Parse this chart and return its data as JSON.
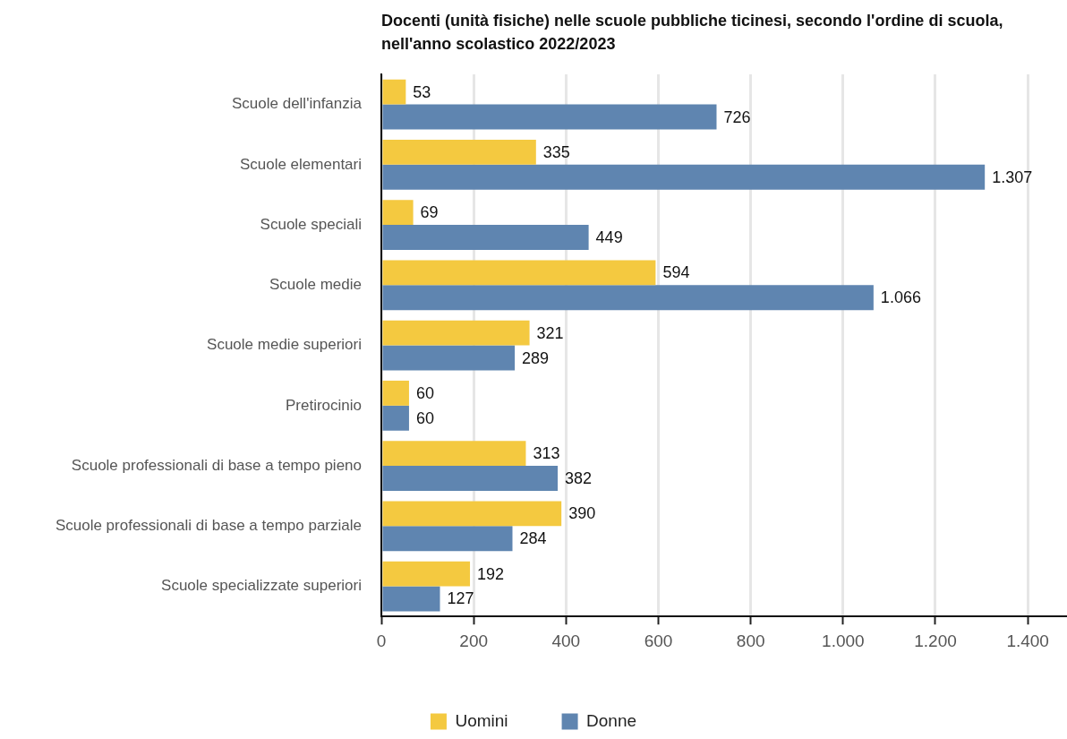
{
  "chart_data": {
    "type": "bar",
    "orientation": "horizontal",
    "title": "Docenti (unità fisiche) nelle scuole pubbliche ticinesi, secondo l'ordine di scuola, nell'anno scolastico 2022/2023",
    "categories": [
      "Scuole dell'infanzia",
      "Scuole elementari",
      "Scuole speciali",
      "Scuole medie",
      "Scuole medie superiori",
      "Pretirocinio",
      "Scuole professionali di base a tempo pieno",
      "Scuole professionali di base a tempo parziale",
      "Scuole specializzate superiori"
    ],
    "series": [
      {
        "name": "Uomini",
        "color": "#f4c940",
        "values": [
          53,
          335,
          69,
          594,
          321,
          60,
          313,
          390,
          192
        ],
        "value_labels": [
          "53",
          "335",
          "69",
          "594",
          "321",
          "60",
          "313",
          "390",
          "192"
        ]
      },
      {
        "name": "Donne",
        "color": "#5f85b0",
        "values": [
          726,
          1307,
          449,
          1066,
          289,
          60,
          382,
          284,
          127
        ],
        "value_labels": [
          "726",
          "1.307",
          "449",
          "1.066",
          "289",
          "60",
          "382",
          "284",
          "127"
        ]
      }
    ],
    "xlim": [
      0,
      1485
    ],
    "xticks": [
      0,
      200,
      400,
      600,
      800,
      {
        "value": 1000,
        "label": "1.000"
      },
      {
        "value": 1200,
        "label": "1.200"
      },
      {
        "value": 1400,
        "label": "1.400"
      }
    ],
    "grid": "x",
    "legend": "bottom"
  }
}
